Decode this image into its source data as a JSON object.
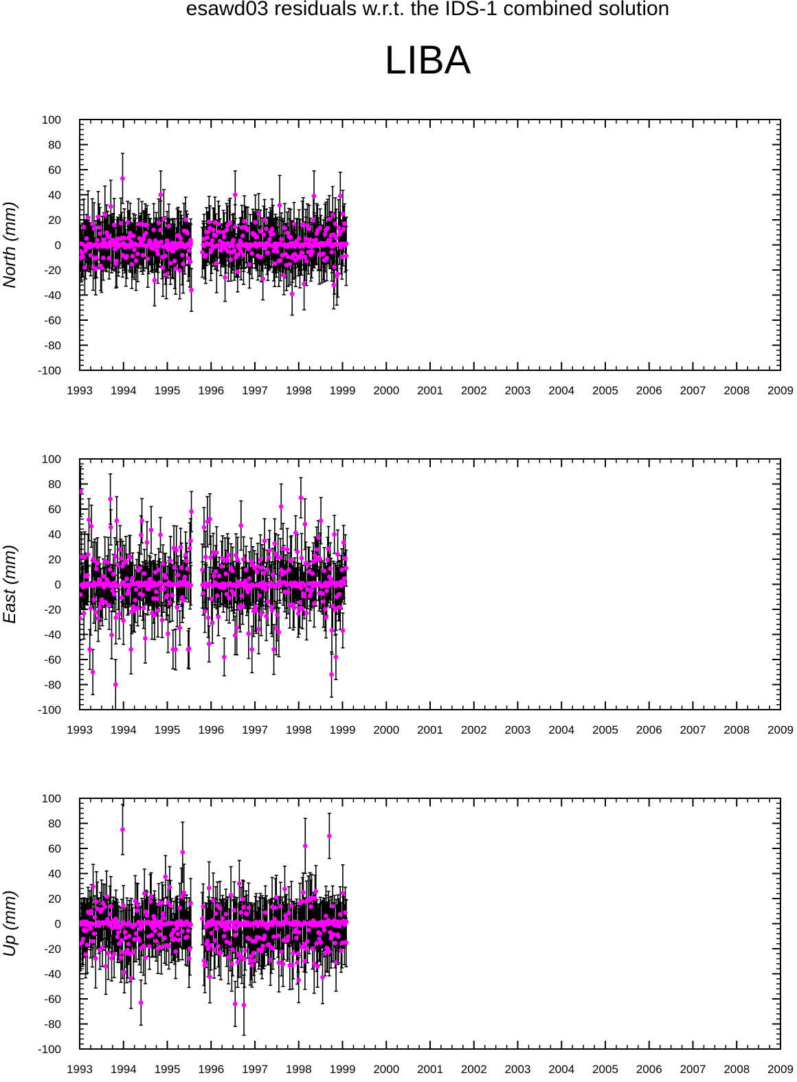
{
  "header": {
    "suptitle": "esawd03 residuals w.r.t. the IDS-1 combined solution",
    "station": "LIBA"
  },
  "colors": {
    "marker": "#ff00ff",
    "errorbar": "#000000",
    "axis": "#000000"
  },
  "chart_data": [
    {
      "type": "scatter",
      "name": "north",
      "ylabel": "North (mm)",
      "xlim": [
        1993,
        2009
      ],
      "ylim": [
        -100,
        100
      ],
      "x_ticks": [
        1993,
        1994,
        1995,
        1996,
        1997,
        1998,
        1999,
        2000,
        2001,
        2002,
        2003,
        2004,
        2005,
        2006,
        2007,
        2008,
        2009
      ],
      "y_ticks": [
        100,
        80,
        60,
        40,
        20,
        0,
        -20,
        -40,
        -60,
        -80,
        -100
      ],
      "segments": [
        [
          1993.0,
          1995.55
        ],
        [
          1995.8,
          1999.1
        ]
      ],
      "seed": 11,
      "scatter_sd": 15,
      "errorbar_halfwidth": 20,
      "highlights": [
        {
          "x": 1993.98,
          "y": 53,
          "err": 20
        },
        {
          "x": 1994.85,
          "y": 40,
          "err": 19
        },
        {
          "x": 1995.55,
          "y": -36,
          "err": 17
        },
        {
          "x": 1996.55,
          "y": 40,
          "err": 19
        },
        {
          "x": 1997.85,
          "y": -39,
          "err": 17
        },
        {
          "x": 1998.35,
          "y": 39,
          "err": 20
        },
        {
          "x": 1998.95,
          "y": 39,
          "err": 19
        },
        {
          "x": 1998.8,
          "y": -32,
          "err": 19
        }
      ]
    },
    {
      "type": "scatter",
      "name": "east",
      "ylabel": "East (mm)",
      "xlim": [
        1993,
        2009
      ],
      "ylim": [
        -100,
        100
      ],
      "x_ticks": [
        1993,
        1994,
        1995,
        1996,
        1997,
        1998,
        1999,
        2000,
        2001,
        2002,
        2003,
        2004,
        2005,
        2006,
        2007,
        2008,
        2009
      ],
      "y_ticks": [
        100,
        80,
        60,
        40,
        20,
        0,
        -20,
        -40,
        -60,
        -80,
        -100
      ],
      "segments": [
        [
          1993.0,
          1995.55
        ],
        [
          1995.8,
          1999.1
        ]
      ],
      "seed": 23,
      "scatter_sd": 28,
      "errorbar_halfwidth": 18,
      "highlights": [
        {
          "x": 1993.02,
          "y": 74,
          "err": 20
        },
        {
          "x": 1993.7,
          "y": 68,
          "err": 20
        },
        {
          "x": 1993.82,
          "y": -80,
          "err": 20
        },
        {
          "x": 1993.3,
          "y": -70,
          "err": 18
        },
        {
          "x": 1995.55,
          "y": 58,
          "err": 16
        },
        {
          "x": 1997.6,
          "y": 62,
          "err": 18
        },
        {
          "x": 1998.05,
          "y": 69,
          "err": 16
        },
        {
          "x": 1998.75,
          "y": -72,
          "err": 18
        },
        {
          "x": 1998.85,
          "y": -58,
          "err": 18
        },
        {
          "x": 1996.3,
          "y": -58,
          "err": 15
        }
      ]
    },
    {
      "type": "scatter",
      "name": "up",
      "ylabel": "Up (mm)",
      "xlim": [
        1993,
        2009
      ],
      "ylim": [
        -100,
        100
      ],
      "x_ticks": [
        1993,
        1994,
        1995,
        1996,
        1997,
        1998,
        1999,
        2000,
        2001,
        2002,
        2003,
        2004,
        2005,
        2006,
        2007,
        2008,
        2009
      ],
      "y_ticks": [
        100,
        80,
        60,
        40,
        20,
        0,
        -20,
        -40,
        -60,
        -80,
        -100
      ],
      "segments": [
        [
          1993.0,
          1995.55
        ],
        [
          1995.8,
          1999.1
        ]
      ],
      "seed": 37,
      "scatter_sd": 20,
      "bias": -8,
      "errorbar_halfwidth": 20,
      "highlights": [
        {
          "x": 1993.98,
          "y": 75,
          "err": 20
        },
        {
          "x": 1995.35,
          "y": 57,
          "err": 24
        },
        {
          "x": 1994.4,
          "y": -63,
          "err": 18
        },
        {
          "x": 1996.55,
          "y": -64,
          "err": 18
        },
        {
          "x": 1996.75,
          "y": -65,
          "err": 24
        },
        {
          "x": 1998.15,
          "y": 62,
          "err": 22
        },
        {
          "x": 1998.7,
          "y": 70,
          "err": 18
        },
        {
          "x": 1998.0,
          "y": -45,
          "err": 18
        }
      ]
    }
  ]
}
